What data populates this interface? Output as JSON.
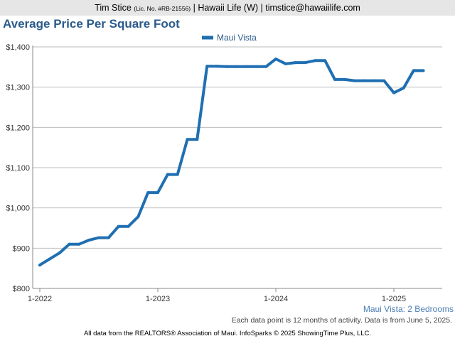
{
  "header": {
    "agent_name": "Tim Stice",
    "license": "(Lic. No. #RB-21556)",
    "brokerage": "| Hawaii Life (W) |",
    "email": "timstice@hawaiilife.com"
  },
  "colors": {
    "series": "#1f6fb2",
    "title": "#2a5a8a",
    "grid": "#bbbbbb",
    "topbar": "#e6e6e6"
  },
  "chart_data": {
    "type": "line",
    "title": "Average Price Per Square Foot",
    "subtitle": "Maui Vista: 2 Bedrooms",
    "xlabel": "",
    "ylabel": "",
    "ylim": [
      800,
      1400
    ],
    "yticks": [
      800,
      900,
      1000,
      1100,
      1200,
      1300,
      1400
    ],
    "ytick_labels": [
      "$800",
      "$900",
      "$1,000",
      "$1,100",
      "$1,200",
      "$1,300",
      "$1,400"
    ],
    "xticks": [
      "1-2022",
      "1-2023",
      "1-2024",
      "1-2025"
    ],
    "xlim": [
      "2022-01",
      "2025-07"
    ],
    "grid": true,
    "legend": "top-center",
    "series": [
      {
        "name": "Maui Vista",
        "x": [
          "2022-01",
          "2022-02",
          "2022-03",
          "2022-04",
          "2022-05",
          "2022-06",
          "2022-07",
          "2022-08",
          "2022-09",
          "2022-10",
          "2022-11",
          "2022-12",
          "2023-01",
          "2023-02",
          "2023-03",
          "2023-04",
          "2023-05",
          "2023-06",
          "2023-07",
          "2023-08",
          "2023-09",
          "2023-10",
          "2023-11",
          "2023-12",
          "2024-01",
          "2024-02",
          "2024-03",
          "2024-04",
          "2024-05",
          "2024-06",
          "2024-07",
          "2024-08",
          "2024-09",
          "2024-10",
          "2024-11",
          "2024-12",
          "2025-01",
          "2025-02",
          "2025-03",
          "2025-04"
        ],
        "values": [
          858,
          873,
          888,
          910,
          910,
          920,
          926,
          926,
          954,
          954,
          978,
          1038,
          1038,
          1083,
          1083,
          1170,
          1170,
          1352,
          1352,
          1351,
          1351,
          1351,
          1351,
          1351,
          1370,
          1358,
          1361,
          1361,
          1366,
          1366,
          1319,
          1319,
          1316,
          1316,
          1316,
          1316,
          1286,
          1298,
          1341,
          1341
        ]
      }
    ]
  },
  "note": "Each data point is 12 months of activity. Data is from June 5, 2025.",
  "footer": "All data from the REALTORS® Association of Maui. InfoSparks © 2025 ShowingTime Plus, LLC."
}
